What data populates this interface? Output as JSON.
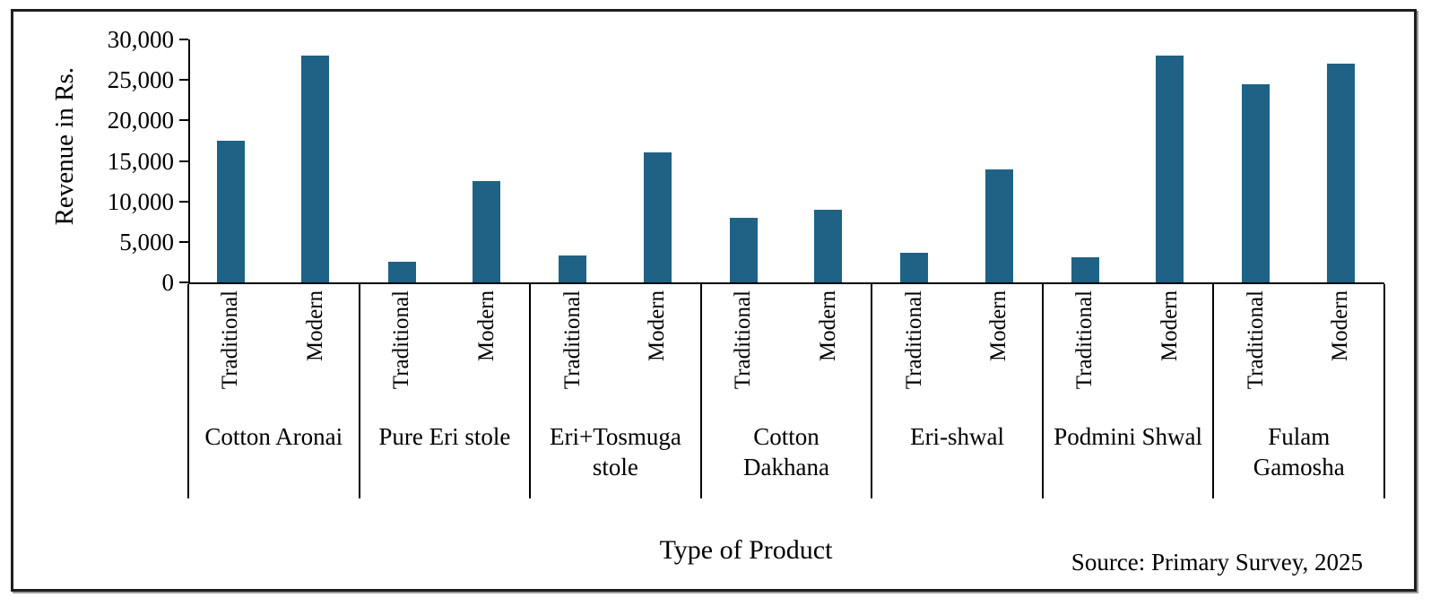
{
  "chart_data": {
    "type": "bar",
    "title": "",
    "categories": [
      "Cotton Aronai",
      "Pure Eri stole",
      "Eri+Tosmuga stole",
      "Cotton Dakhana",
      "Eri-shwal",
      "Podmini Shwal",
      "Fulam Gamosha"
    ],
    "category_label_lines": [
      [
        "Cotton Aronai"
      ],
      [
        "Pure Eri stole"
      ],
      [
        "Eri+Tosmuga",
        "stole"
      ],
      [
        "Cotton",
        "Dakhana"
      ],
      [
        "Eri-shwal"
      ],
      [
        "Podmini Shwal"
      ],
      [
        "Fulam",
        "Gamosha"
      ]
    ],
    "series": [
      {
        "name": "Traditional",
        "values": [
          17500,
          2500,
          3300,
          8000,
          3700,
          3100,
          24500
        ]
      },
      {
        "name": "Modern",
        "values": [
          28000,
          12500,
          16000,
          9000,
          14000,
          28000,
          27000
        ]
      }
    ],
    "xlabel": "Type of Product",
    "ylabel": "Revenue in Rs.",
    "ylim": [
      0,
      30000
    ],
    "ytick_interval": 5000,
    "ytick_values": [
      0,
      5000,
      10000,
      15000,
      20000,
      25000,
      30000
    ],
    "ytick_labels": [
      "0",
      "5,000",
      "10,000",
      "15,000",
      "20,000",
      "25,000",
      "30,000"
    ],
    "grid": false,
    "legend_position": "none",
    "bar_color": "#1F6285",
    "axis_color": "#000000",
    "annotation": "Source: Primary Survey, 2025"
  }
}
